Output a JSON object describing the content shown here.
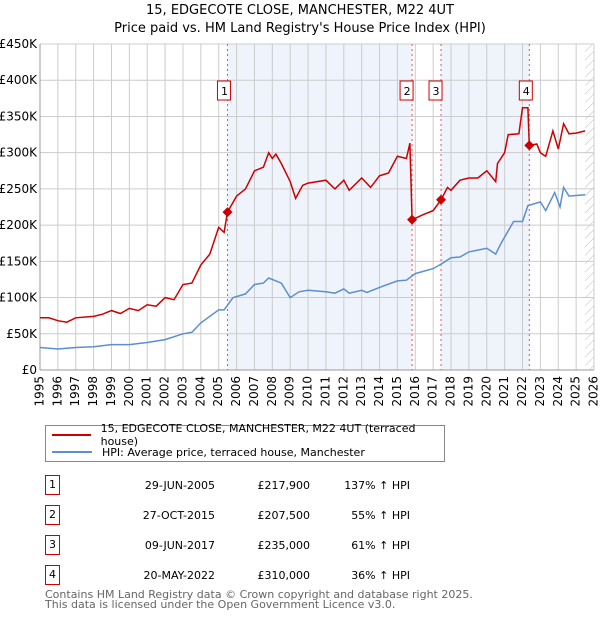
{
  "chart_data": {
    "type": "line",
    "title": "15, EDGECOTE CLOSE, MANCHESTER, M22 4UT",
    "subtitle": "Price paid vs. HM Land Registry's House Price Index (HPI)",
    "xlim": [
      1995,
      2026
    ],
    "ylim": [
      0,
      450000
    ],
    "y_ticks": [
      0,
      50000,
      100000,
      150000,
      200000,
      250000,
      300000,
      350000,
      400000,
      450000
    ],
    "y_tick_labels": [
      "£0",
      "£50K",
      "£100K",
      "£150K",
      "£200K",
      "£250K",
      "£300K",
      "£350K",
      "£400K",
      "£450K"
    ],
    "x_ticks": [
      "1995",
      "1996",
      "1997",
      "1998",
      "1999",
      "2000",
      "2001",
      "2002",
      "2003",
      "2004",
      "2005",
      "2006",
      "2007",
      "2008",
      "2009",
      "2010",
      "2011",
      "2012",
      "2013",
      "2014",
      "2015",
      "2016",
      "2017",
      "2018",
      "2019",
      "2020",
      "2021",
      "2022",
      "2023",
      "2024",
      "2025",
      "2026"
    ],
    "grid": true,
    "colors": {
      "property": "#cc0000",
      "hpi": "#5b8fd0",
      "shade": "#eef3fc",
      "marker_border": "#cc0000"
    },
    "shaded_ranges": [
      [
        2005.49,
        2015.82
      ],
      [
        2017.44,
        2022.38
      ]
    ],
    "hatched_from": 2025.5,
    "series": [
      {
        "name": "15, EDGECOTE CLOSE, MANCHESTER, M22 4UT (terraced house)",
        "x": [
          1995,
          1995.5,
          1996,
          1996.5,
          1997,
          1998,
          1998.5,
          1999,
          1999.5,
          2000,
          2000.5,
          2001,
          2001.5,
          2002,
          2002.5,
          2003,
          2003.5,
          2004,
          2004.5,
          2005,
          2005.3,
          2005.49,
          2006,
          2006.5,
          2007,
          2007.5,
          2007.8,
          2008,
          2008.2,
          2008.5,
          2009,
          2009.3,
          2009.7,
          2010,
          2011,
          2011.5,
          2012,
          2012.3,
          2013,
          2013.5,
          2014,
          2014.5,
          2015,
          2015.5,
          2015.7,
          2015.82,
          2016.5,
          2017,
          2017.44,
          2017.8,
          2018,
          2018.5,
          2019,
          2019.5,
          2020,
          2020.5,
          2020.6,
          2021,
          2021.2,
          2021.8,
          2022,
          2022.3,
          2022.38,
          2022.8,
          2023,
          2023.3,
          2023.7,
          2024,
          2024.3,
          2024.6,
          2025,
          2025.5
        ],
        "y": [
          72000,
          72000,
          68000,
          66000,
          72000,
          74000,
          77000,
          82000,
          78000,
          85000,
          82000,
          90000,
          88000,
          100000,
          97000,
          118000,
          120000,
          145000,
          160000,
          197000,
          190000,
          217900,
          240000,
          250000,
          275000,
          280000,
          300000,
          292000,
          298000,
          285000,
          260000,
          237000,
          255000,
          258000,
          262000,
          250000,
          262000,
          248000,
          265000,
          252000,
          268000,
          272000,
          295000,
          292000,
          313000,
          207500,
          215000,
          220000,
          235000,
          252000,
          248000,
          262000,
          265000,
          265000,
          275000,
          260000,
          285000,
          300000,
          325000,
          326000,
          362000,
          362000,
          310000,
          312000,
          300000,
          295000,
          330000,
          305000,
          340000,
          326000,
          327000,
          330000
        ]
      },
      {
        "name": "HPI: Average price, terraced house, Manchester",
        "x": [
          1995,
          1996,
          1997,
          1998,
          1999,
          2000,
          2001,
          2002,
          2003,
          2003.5,
          2004,
          2005,
          2005.3,
          2005.8,
          2006.5,
          2007,
          2007.5,
          2007.8,
          2008.5,
          2009,
          2009.5,
          2010,
          2011,
          2011.5,
          2012,
          2012.3,
          2013,
          2013.3,
          2014,
          2015,
          2015.5,
          2016,
          2017,
          2017.5,
          2018,
          2018.5,
          2019,
          2020,
          2020.5,
          2020.8,
          2021.5,
          2022,
          2022.3,
          2023,
          2023.3,
          2023.8,
          2024.1,
          2024.3,
          2024.6,
          2025.5
        ],
        "y": [
          31000,
          29000,
          31000,
          32000,
          35000,
          35000,
          38000,
          42000,
          50000,
          52000,
          65000,
          83000,
          83000,
          100000,
          105000,
          118000,
          120000,
          127000,
          120000,
          100000,
          108000,
          110000,
          108000,
          106000,
          112000,
          106000,
          110000,
          107000,
          114000,
          123000,
          124000,
          133000,
          140000,
          147000,
          155000,
          156000,
          163000,
          168000,
          160000,
          175000,
          205000,
          205000,
          227000,
          232000,
          220000,
          245000,
          225000,
          252000,
          240000,
          242000
        ]
      }
    ],
    "sales": [
      {
        "label": "1",
        "x": 2005.49,
        "y": 217900
      },
      {
        "label": "2",
        "x": 2015.82,
        "y": 207500
      },
      {
        "label": "3",
        "x": 2017.44,
        "y": 235000
      },
      {
        "label": "4",
        "x": 2022.38,
        "y": 310000
      }
    ]
  },
  "legend": {
    "property": "15, EDGECOTE CLOSE, MANCHESTER, M22 4UT (terraced house)",
    "hpi": "HPI: Average price, terraced house, Manchester"
  },
  "table": [
    {
      "num": "1",
      "date": "29-JUN-2005",
      "price": "£217,900",
      "hpi": "137% ↑ HPI"
    },
    {
      "num": "2",
      "date": "27-OCT-2015",
      "price": "£207,500",
      "hpi": "55% ↑ HPI"
    },
    {
      "num": "3",
      "date": "09-JUN-2017",
      "price": "£235,000",
      "hpi": "61% ↑ HPI"
    },
    {
      "num": "4",
      "date": "20-MAY-2022",
      "price": "£310,000",
      "hpi": "36% ↑ HPI"
    }
  ],
  "footer": {
    "line1": "Contains HM Land Registry data © Crown copyright and database right 2025.",
    "line2": "This data is licensed under the Open Government Licence v3.0."
  }
}
